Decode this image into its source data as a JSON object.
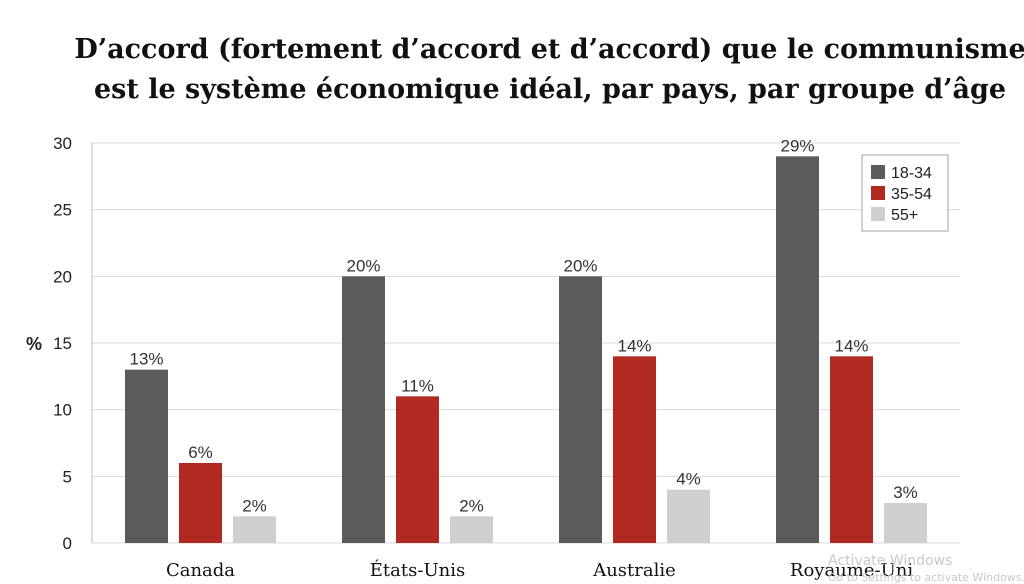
{
  "chart_data": {
    "type": "bar",
    "title_lines": [
      "D’accord (fortement d’accord et d’accord) que le communisme",
      "est le système économique idéal, par pays, par groupe d’âge"
    ],
    "ylabel": "%",
    "ylim": [
      0,
      30
    ],
    "yticks": [
      0,
      5,
      10,
      15,
      20,
      25,
      30
    ],
    "grid": true,
    "legend_position": "top-right",
    "categories": [
      "Canada",
      "États-Unis",
      "Australie",
      "Royaume-Uni"
    ],
    "series": [
      {
        "name": "18-34",
        "color": "#5b5b5b",
        "values": [
          13,
          20,
          20,
          29
        ],
        "labels": [
          "13%",
          "20%",
          "20%",
          "29%"
        ]
      },
      {
        "name": "35-54",
        "color": "#b02a22",
        "values": [
          6,
          11,
          14,
          14
        ],
        "labels": [
          "6%",
          "11%",
          "14%",
          "14%"
        ]
      },
      {
        "name": "55+",
        "color": "#cfcfcf",
        "values": [
          2,
          2,
          4,
          3
        ],
        "labels": [
          "2%",
          "2%",
          "4%",
          "3%"
        ]
      }
    ]
  },
  "watermark": {
    "line1": "Activate Windows",
    "line2": "Go to Settings to activate Windows."
  }
}
